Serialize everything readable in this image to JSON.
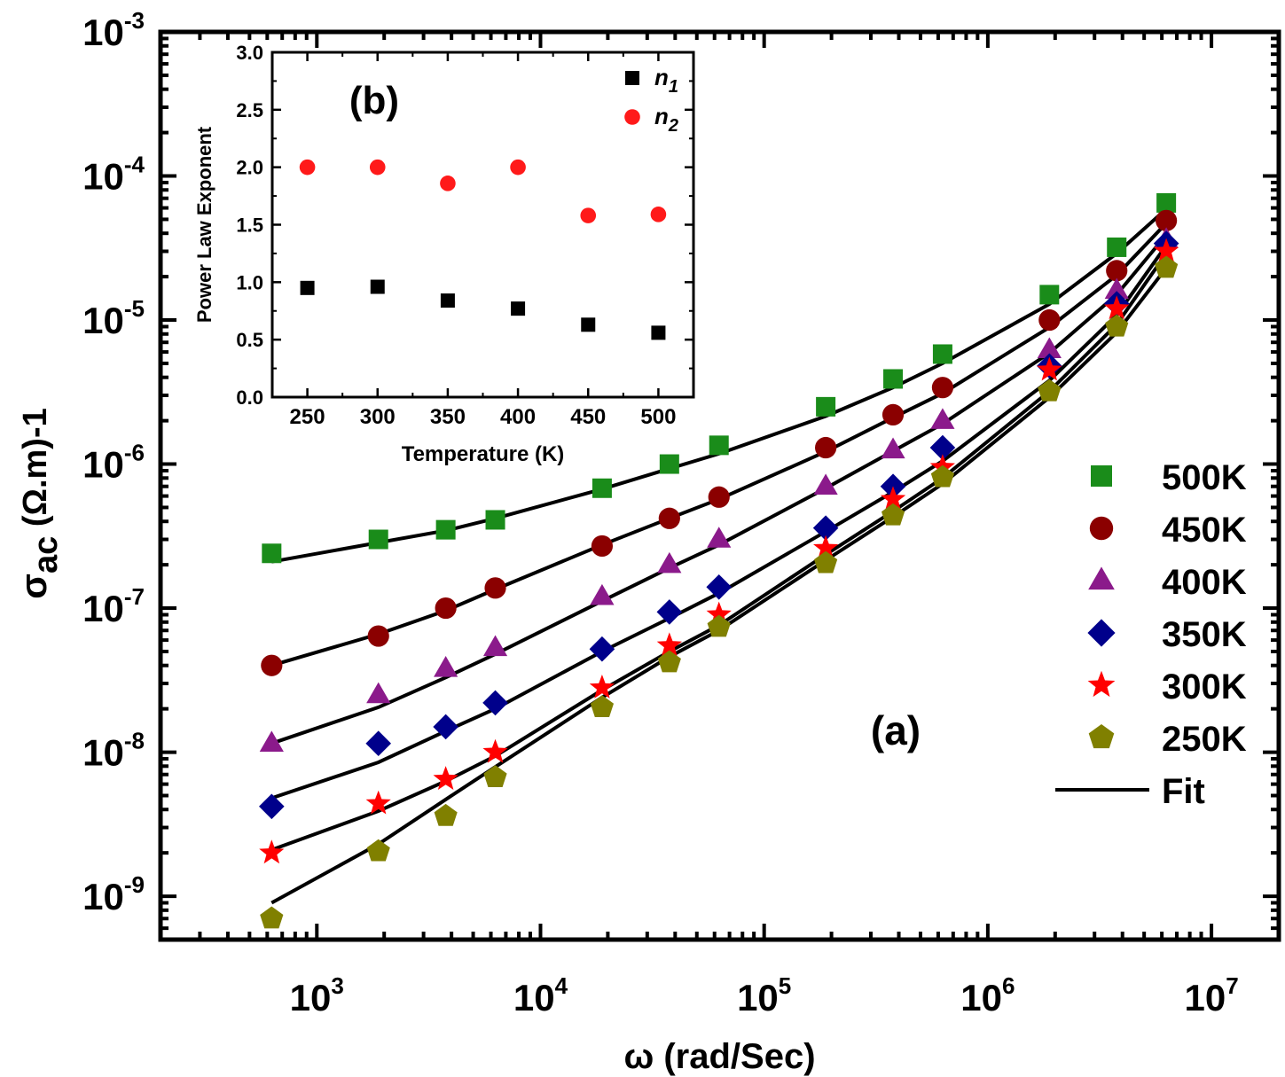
{
  "chart_data": [
    {
      "id": "a",
      "type": "scatter",
      "annotation": "(a)",
      "xlabel": "ω (rad/Sec)",
      "ylabel": "σac (Ω.m)-1",
      "ylabel_parts": {
        "sym": "σ",
        "sub": "ac",
        "rest": " (Ω.m)-1"
      },
      "xscale": "log",
      "yscale": "log",
      "xlim": [
        200,
        20000000
      ],
      "ylim": [
        5e-10,
        0.001
      ],
      "x_ticks": [
        {
          "base": "10",
          "exp": "3",
          "value": 1000
        },
        {
          "base": "10",
          "exp": "4",
          "value": 10000
        },
        {
          "base": "10",
          "exp": "5",
          "value": 100000
        },
        {
          "base": "10",
          "exp": "6",
          "value": 1000000
        },
        {
          "base": "10",
          "exp": "7",
          "value": 10000000
        }
      ],
      "y_ticks": [
        {
          "base": "10",
          "exp": "-9",
          "value": 1e-09
        },
        {
          "base": "10",
          "exp": "-8",
          "value": 1e-08
        },
        {
          "base": "10",
          "exp": "-7",
          "value": 1e-07
        },
        {
          "base": "10",
          "exp": "-6",
          "value": 1e-06
        },
        {
          "base": "10",
          "exp": "-5",
          "value": 1e-05
        },
        {
          "base": "10",
          "exp": "-4",
          "value": 0.0001
        },
        {
          "base": "10",
          "exp": "-3",
          "value": 0.001
        }
      ],
      "legend_position": "right",
      "x": [
        628,
        1885,
        3770,
        6280,
        18850,
        37700,
        62800,
        188500,
        377000,
        628000,
        1885000,
        3770000,
        6280000
      ],
      "series": [
        {
          "name": "500K",
          "marker": "square",
          "color": "#1a8c1a",
          "values": [
            2.4e-07,
            3e-07,
            3.5e-07,
            4.1e-07,
            6.8e-07,
            1e-06,
            1.35e-06,
            2.5e-06,
            3.9e-06,
            5.8e-06,
            1.5e-05,
            3.2e-05,
            6.5e-05
          ],
          "fit": [
            2.1e-07,
            2.85e-07,
            3.45e-07,
            4.2e-07,
            6.7e-07,
            9.3e-07,
            1.18e-06,
            2.15e-06,
            3.4e-06,
            5e-06,
            1.29e-05,
            2.9e-05,
            5.9e-05
          ]
        },
        {
          "name": "450K",
          "marker": "circle",
          "color": "#8b0000",
          "values": [
            4e-08,
            6.4e-08,
            1e-07,
            1.38e-07,
            2.7e-07,
            4.2e-07,
            5.9e-07,
            1.3e-06,
            2.2e-06,
            3.4e-06,
            1e-05,
            2.2e-05,
            4.9e-05
          ],
          "fit": [
            4e-08,
            6.6e-08,
            9.6e-08,
            1.35e-07,
            2.75e-07,
            4.2e-07,
            5.7e-07,
            1.22e-06,
            2.1e-06,
            3.1e-06,
            8.9e-06,
            2.05e-05,
            4.7e-05
          ]
        },
        {
          "name": "400K",
          "marker": "triangle",
          "color": "#8b1a8b",
          "values": [
            1.15e-08,
            2.5e-08,
            3.8e-08,
            5.3e-08,
            1.2e-07,
            2e-07,
            3e-07,
            7e-07,
            1.25e-06,
            2e-06,
            6.2e-06,
            1.6e-05,
            3.6e-05
          ],
          "fit": [
            1.15e-08,
            2.05e-08,
            3.3e-08,
            4.8e-08,
            1.12e-07,
            1.9e-07,
            2.75e-07,
            6.8e-07,
            1.23e-06,
            1.9e-06,
            5.9e-06,
            1.5e-05,
            3.9e-05
          ]
        },
        {
          "name": "350K",
          "marker": "diamond",
          "color": "#00008b",
          "values": [
            4.2e-09,
            1.15e-08,
            1.5e-08,
            2.2e-08,
            5.2e-08,
            9.4e-08,
            1.4e-07,
            3.6e-07,
            7e-07,
            1.3e-06,
            4.8e-06,
            1.3e-05,
            3.4e-05
          ],
          "fit": [
            4.8e-09,
            8.5e-09,
            1.4e-08,
            2e-08,
            5e-08,
            8.5e-08,
            1.27e-07,
            3.4e-07,
            6.4e-07,
            1.05e-06,
            3.8e-06,
            1.08e-05,
            3.3e-05
          ]
        },
        {
          "name": "300K",
          "marker": "star",
          "color": "#ff0000",
          "values": [
            2e-09,
            4.4e-09,
            6.5e-09,
            1e-08,
            2.8e-08,
            5.5e-08,
            9e-08,
            2.6e-07,
            5.7e-07,
            9.5e-07,
            4.5e-06,
            1.2e-05,
            3e-05
          ],
          "fit": [
            2.1e-09,
            3.9e-09,
            6.3e-09,
            9.4e-09,
            2.7e-08,
            5e-08,
            7.6e-08,
            2.35e-07,
            4.7e-07,
            8e-07,
            3.2e-06,
            9.3e-06,
            2.9e-05
          ]
        },
        {
          "name": "250K",
          "marker": "pentagon",
          "color": "#808000",
          "values": [
            7e-10,
            2.05e-09,
            3.6e-09,
            6.7e-09,
            2.05e-08,
            4.2e-08,
            7.4e-08,
            2.05e-07,
            4.4e-07,
            8.1e-07,
            3.2e-06,
            9e-06,
            2.3e-05
          ],
          "fit": [
            9e-10,
            2.3e-09,
            4.7e-09,
            7.9e-09,
            2.4e-08,
            4.6e-08,
            7e-08,
            2.15e-07,
            4.3e-07,
            7.3e-07,
            2.9e-06,
            8.2e-06,
            2.3e-05
          ]
        }
      ],
      "fit_label": "Fit"
    },
    {
      "id": "b",
      "type": "scatter",
      "annotation": "(b)",
      "xlabel": "Temperature (K)",
      "ylabel": "Power Law Exponent",
      "xlim": [
        225,
        525
      ],
      "ylim": [
        0,
        3
      ],
      "x_ticks": [
        "250",
        "300",
        "350",
        "400",
        "450",
        "500"
      ],
      "y_ticks": [
        "0.0",
        "0.5",
        "1.0",
        "1.5",
        "2.0",
        "2.5",
        "3.0"
      ],
      "legend_position": "top-right",
      "x": [
        250,
        300,
        350,
        400,
        450,
        500
      ],
      "series": [
        {
          "name": "n1",
          "name_base": "n",
          "name_sub": "1",
          "marker": "square",
          "color": "#000000",
          "values": [
            0.95,
            0.96,
            0.84,
            0.77,
            0.63,
            0.56
          ]
        },
        {
          "name": "n2",
          "name_base": "n",
          "name_sub": "2",
          "marker": "circle",
          "color": "#ff1a1a",
          "values": [
            2.0,
            2.0,
            1.86,
            2.0,
            1.58,
            1.59
          ]
        }
      ]
    }
  ]
}
